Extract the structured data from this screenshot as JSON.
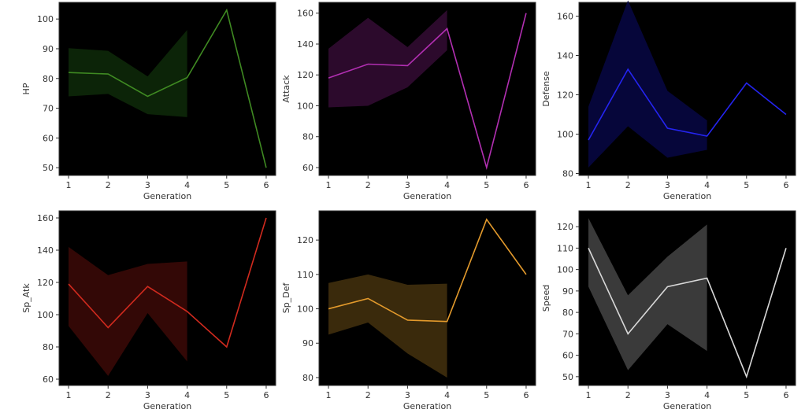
{
  "chart_data": [
    {
      "type": "line",
      "ylabel": "HP",
      "xlabel": "Generation",
      "color": "#3f8a22",
      "fill": "#0c2408",
      "x": [
        1,
        2,
        3,
        4,
        5,
        6
      ],
      "values": [
        82,
        81.5,
        74,
        80.3,
        103,
        50
      ],
      "ci_low": [
        74,
        74.8,
        68,
        67
      ],
      "ci_high": [
        90.2,
        89.3,
        80.7,
        96.3
      ],
      "xlim": [
        0.76,
        6.24
      ],
      "ylim": [
        47.4,
        105.6
      ],
      "yticks": [
        50,
        60,
        70,
        80,
        90,
        100
      ]
    },
    {
      "type": "line",
      "ylabel": "Attack",
      "xlabel": "Generation",
      "color": "#b22fb2",
      "fill": "#2c0a2c",
      "x": [
        1,
        2,
        3,
        4,
        5,
        6
      ],
      "values": [
        118,
        127,
        126,
        150,
        60,
        160
      ],
      "ci_low": [
        99,
        100,
        112,
        136
      ],
      "ci_high": [
        137,
        157,
        138,
        162
      ],
      "xlim": [
        0.76,
        6.24
      ],
      "ylim": [
        54.9,
        167
      ],
      "yticks": [
        60,
        80,
        100,
        120,
        140,
        160
      ]
    },
    {
      "type": "line",
      "ylabel": "Defense",
      "xlabel": "Generation",
      "color": "#2424f0",
      "fill": "#06063a",
      "x": [
        1,
        2,
        3,
        4,
        5,
        6
      ],
      "values": [
        97,
        133,
        103,
        99,
        126,
        110
      ],
      "ci_low": [
        83,
        104,
        88,
        92
      ],
      "ci_high": [
        114,
        168,
        122,
        107
      ],
      "xlim": [
        0.76,
        6.24
      ],
      "ylim": [
        79,
        167
      ],
      "yticks": [
        80,
        100,
        120,
        140,
        160
      ]
    },
    {
      "type": "line",
      "ylabel": "Sp_Atk",
      "xlabel": "Generation",
      "color": "#d02a1e",
      "fill": "#330806",
      "x": [
        1,
        2,
        3,
        4,
        5,
        6
      ],
      "values": [
        119,
        92,
        117.5,
        102,
        80,
        160
      ],
      "ci_low": [
        93,
        62,
        101,
        71
      ],
      "ci_high": [
        142,
        124.5,
        131.5,
        133
      ],
      "xlim": [
        0.76,
        6.24
      ],
      "ylim": [
        56.1,
        164.4
      ],
      "yticks": [
        60,
        80,
        100,
        120,
        140,
        160
      ]
    },
    {
      "type": "line",
      "ylabel": "Sp_Def",
      "xlabel": "Generation",
      "color": "#e39a2c",
      "fill": "#3a2a0c",
      "x": [
        1,
        2,
        3,
        4,
        5,
        6
      ],
      "values": [
        100,
        103,
        96.7,
        96.3,
        126,
        110
      ],
      "ci_low": [
        92.5,
        96,
        87,
        80
      ],
      "ci_high": [
        107.5,
        110,
        107,
        107.3
      ],
      "xlim": [
        0.76,
        6.24
      ],
      "ylim": [
        77.7,
        128.5
      ],
      "yticks": [
        80,
        90,
        100,
        110,
        120
      ]
    },
    {
      "type": "line",
      "ylabel": "Speed",
      "xlabel": "Generation",
      "color": "#d8d8d8",
      "fill": "#3a3a3a",
      "x": [
        1,
        2,
        3,
        4,
        5,
        6
      ],
      "values": [
        110,
        70,
        92,
        96,
        50,
        110
      ],
      "ci_low": [
        92,
        53,
        74.5,
        62
      ],
      "ci_high": [
        124,
        88,
        106,
        121
      ],
      "xlim": [
        0.76,
        6.24
      ],
      "ylim": [
        45.9,
        127.4
      ],
      "yticks": [
        50,
        60,
        70,
        80,
        90,
        100,
        110,
        120
      ]
    }
  ]
}
